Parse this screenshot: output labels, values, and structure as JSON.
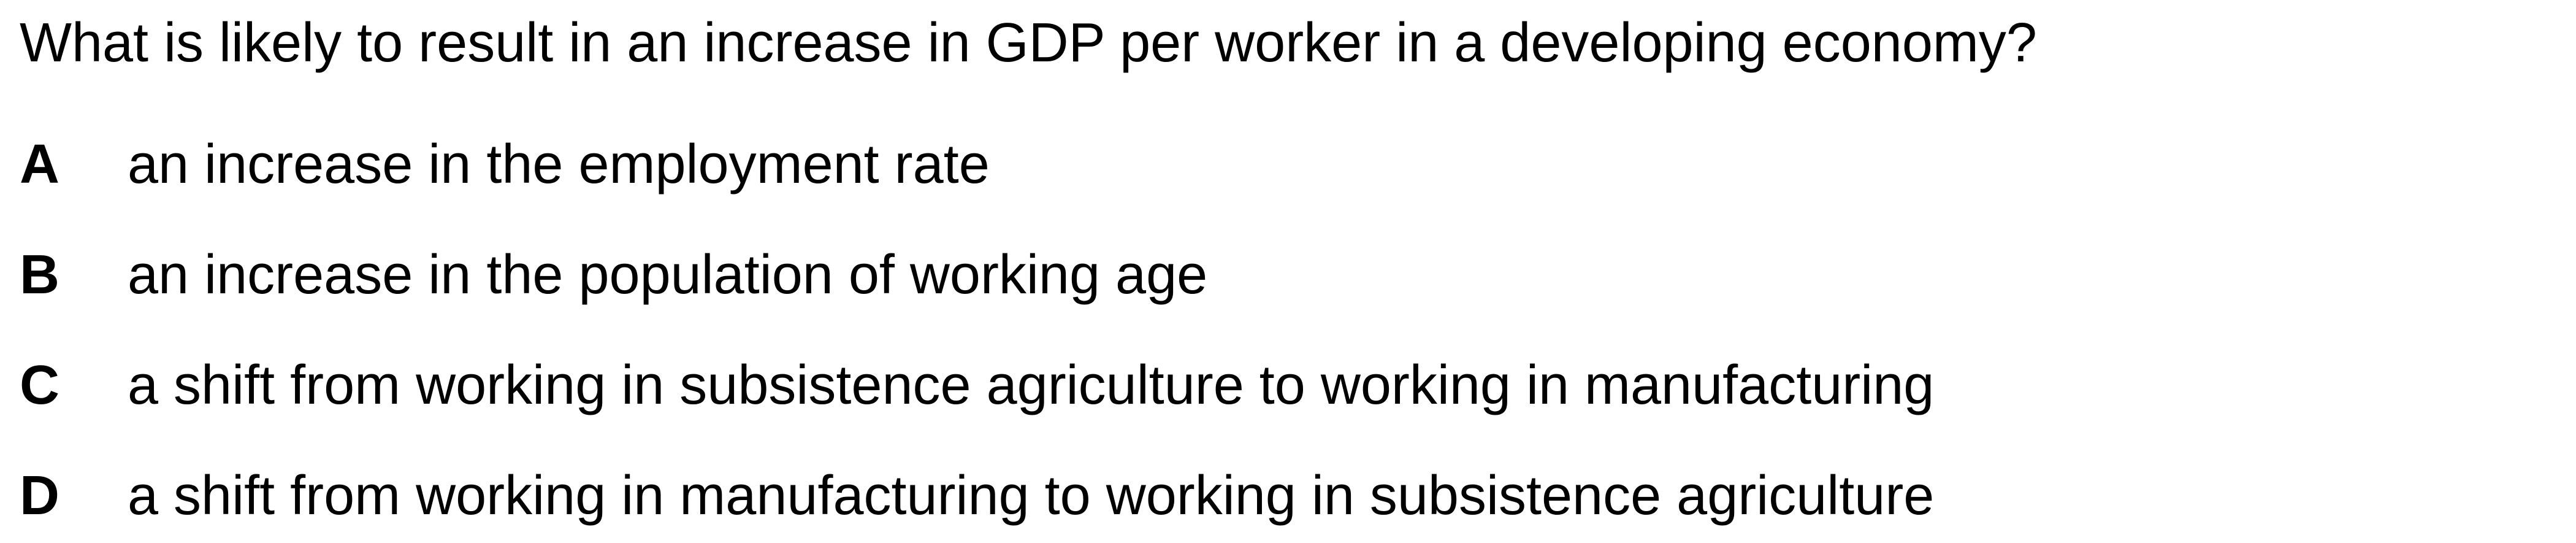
{
  "question": {
    "text": "What is likely to result in an increase in GDP per worker in a developing economy?"
  },
  "options": [
    {
      "letter": "A",
      "text": "an increase in the employment rate"
    },
    {
      "letter": "B",
      "text": "an increase in the population of working age"
    },
    {
      "letter": "C",
      "text": "a shift from working in subsistence agriculture to working in manufacturing"
    },
    {
      "letter": "D",
      "text": "a shift from working in manufacturing to working in subsistence agriculture"
    }
  ]
}
